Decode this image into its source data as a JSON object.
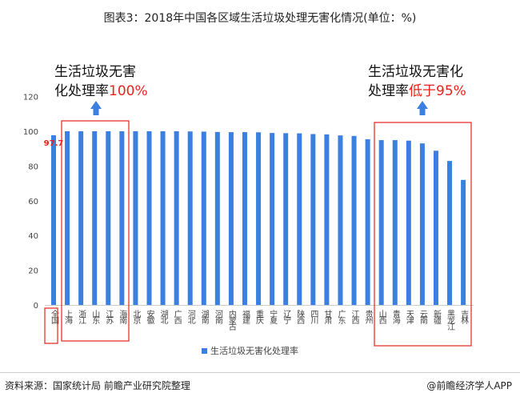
{
  "title": "图表3：2018年中国各区域生活垃圾处理无害化情况(单位：%)",
  "annotations": {
    "left_line1": "生活垃圾无害",
    "left_line2a": "化处理率",
    "left_line2b": "100%",
    "right_line1": "生活垃圾无害化",
    "right_line2a": "处理率",
    "right_line2b": "低于95%",
    "national_label": "97.7"
  },
  "source": "资料来源：国家统计局 前瞻产业研究院整理",
  "app": "@前瞻经济学人APP",
  "colors": {
    "bar": "#3b7fe0",
    "highlight": "#e8221c"
  },
  "chart_data": {
    "type": "bar",
    "title": "图表3：2018年中国各区域生活垃圾处理无害化情况(单位：%)",
    "categories": [
      "全国",
      "上海",
      "浙江",
      "山东",
      "江苏",
      "海南",
      "北京",
      "安徽",
      "湖北",
      "广西",
      "河北",
      "湖南",
      "河南",
      "内蒙古",
      "福建",
      "重庆",
      "宁夏",
      "辽宁",
      "陕西",
      "四川",
      "甘肃",
      "广东",
      "江西",
      "贵州",
      "山西",
      "青海",
      "天津",
      "云南",
      "新疆",
      "黑龙江",
      "吉林"
    ],
    "series": [
      {
        "name": "生活垃圾无害化处理率",
        "values": [
          97.7,
          100,
          100,
          100,
          100,
          100,
          100,
          100,
          100,
          100,
          99.9,
          99.8,
          99.6,
          99.5,
          99.5,
          99.4,
          99.0,
          98.9,
          98.8,
          98.4,
          98.2,
          97.6,
          97.3,
          95.4,
          94.9,
          94.9,
          94.6,
          93.0,
          88.8,
          82.9,
          72.0
        ]
      }
    ],
    "yticks": [
      0,
      20,
      40,
      60,
      80,
      100,
      120
    ],
    "ylim": [
      0,
      120
    ],
    "grid": false,
    "legend": "bottom"
  }
}
